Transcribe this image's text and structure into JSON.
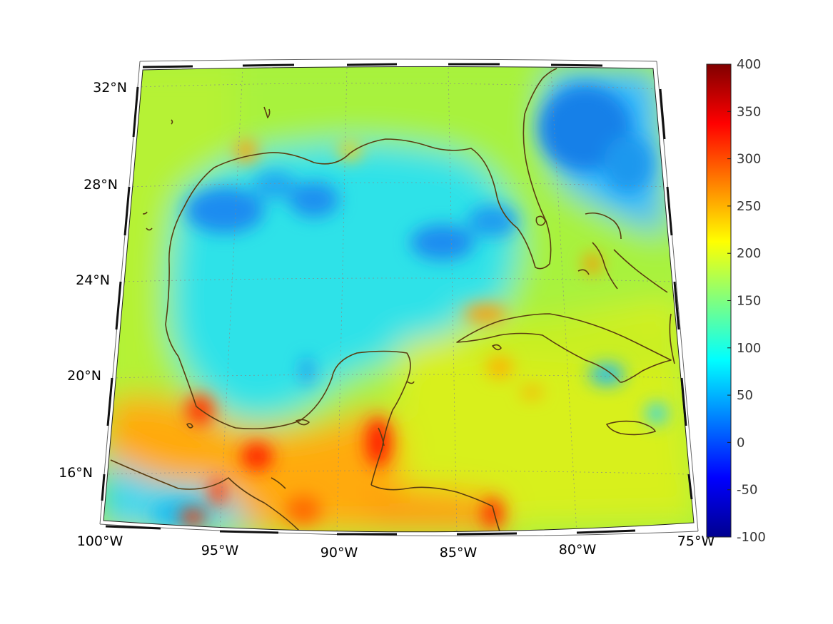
{
  "map": {
    "lat_labels": [
      "32°N",
      "28°N",
      "24°N",
      "20°N",
      "16°N"
    ],
    "lon_labels": [
      "100°W",
      "95°W",
      "90°W",
      "85°W",
      "80°W",
      "75°W"
    ],
    "extent": {
      "lon_min": -100,
      "lon_max": -75,
      "lat_min": 14,
      "lat_max": 32.5
    },
    "coastline_color": "#5a3d10",
    "grid": "dotted"
  },
  "colorbar": {
    "ticks": [
      "400",
      "350",
      "300",
      "250",
      "200",
      "150",
      "100",
      "50",
      "0",
      "-50",
      "-100"
    ],
    "min": -100,
    "max": 400,
    "colormap": "jet"
  },
  "chart_data": {
    "type": "heatmap",
    "title": "",
    "xlabel": "",
    "ylabel": "",
    "value_range": [
      -100,
      400
    ],
    "description_regions": [
      {
        "region": "Gulf of Mexico interior",
        "value": 80
      },
      {
        "region": "Texas/Louisiana shelf",
        "value": 40
      },
      {
        "region": "West Florida shelf",
        "value": 40
      },
      {
        "region": "Atlantic east of Florida",
        "value": 35
      },
      {
        "region": "Caribbean Sea",
        "value": 180
      },
      {
        "region": "Southern Mexico / Central America",
        "value": 270
      },
      {
        "region": "Pacific coast",
        "value": 110
      }
    ]
  }
}
